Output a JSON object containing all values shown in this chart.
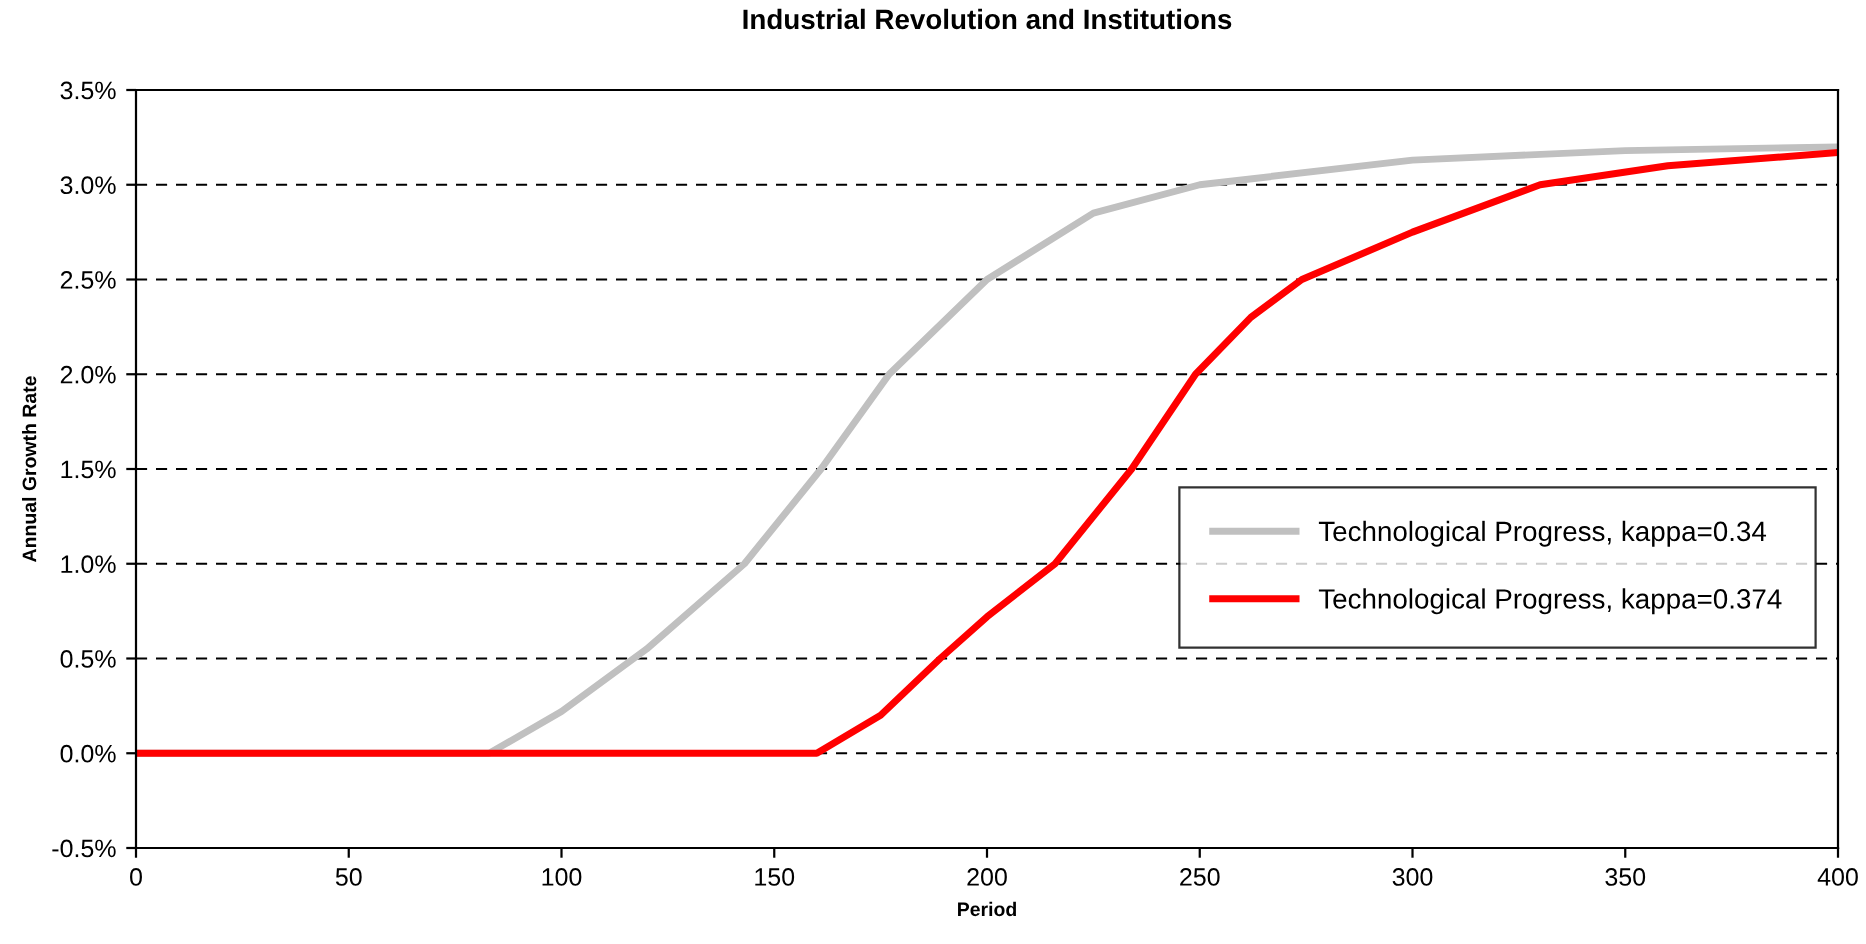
{
  "chart_data": {
    "type": "line",
    "title": "Industrial Revolution and Institutions",
    "xlabel": "Period",
    "ylabel": "Annual Growth Rate",
    "series": [
      {
        "name": "Technological Progress, kappa=0.34",
        "color": "#c0c0c0",
        "x": [
          0,
          83,
          100,
          120,
          143,
          161,
          177,
          200,
          225,
          250,
          300,
          350,
          400
        ],
        "values": [
          0,
          0,
          0.22,
          0.55,
          1.0,
          1.5,
          2.0,
          2.5,
          2.85,
          3.0,
          3.13,
          3.18,
          3.2
        ]
      },
      {
        "name": "Technological Progress, kappa=0.374",
        "color": "#ff0000",
        "x": [
          0,
          160,
          175,
          189,
          200,
          216,
          234,
          249,
          262,
          274,
          300,
          330,
          360,
          400
        ],
        "values": [
          0,
          0,
          0.2,
          0.5,
          0.72,
          1.0,
          1.5,
          2.0,
          2.3,
          2.5,
          2.75,
          3.0,
          3.1,
          3.17
        ]
      }
    ],
    "xlim": [
      0,
      400
    ],
    "xticks": [
      0,
      50,
      100,
      150,
      200,
      250,
      300,
      350,
      400
    ],
    "ylim": [
      -0.5,
      3.5
    ],
    "yticks": [
      {
        "value": -0.5,
        "label": "-0.5%"
      },
      {
        "value": 0,
        "label": "0.0%"
      },
      {
        "value": 0.5,
        "label": "0.5%"
      },
      {
        "value": 1,
        "label": "1.0%"
      },
      {
        "value": 1.5,
        "label": "1.5%"
      },
      {
        "value": 2,
        "label": "2.0%"
      },
      {
        "value": 2.5,
        "label": "2.5%"
      },
      {
        "value": 3,
        "label": "3.0%"
      },
      {
        "value": 3.5,
        "label": "3.5%"
      }
    ],
    "grid": "y",
    "legend": "right",
    "marker": "none",
    "line_style": "solid"
  }
}
